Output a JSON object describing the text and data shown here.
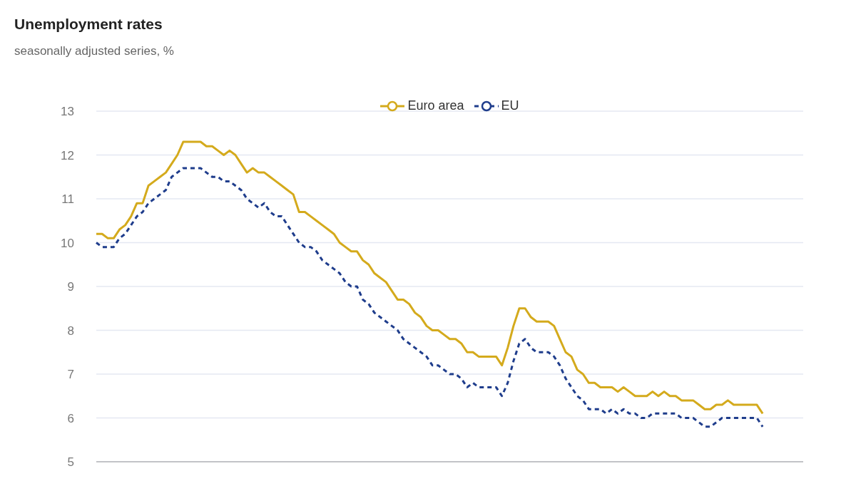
{
  "chart_data": {
    "type": "line",
    "title": "Unemployment rates",
    "subtitle": "seasonally adjusted series, %",
    "categories": [
      null,
      null,
      null,
      null,
      null,
      null,
      null,
      null,
      null,
      null,
      null,
      null,
      null,
      null,
      null,
      null,
      null,
      null,
      null,
      null,
      null,
      null,
      null,
      null,
      null,
      null,
      null,
      null,
      null,
      null,
      null,
      null,
      null,
      null,
      null,
      null,
      null,
      null,
      null,
      null,
      null,
      null,
      null,
      null,
      null,
      null,
      null,
      null,
      null,
      null,
      null,
      null,
      null,
      null,
      null,
      null,
      null,
      null,
      null,
      null,
      null,
      null,
      null,
      null,
      null,
      null,
      null,
      null,
      null,
      null,
      null,
      null,
      null,
      null,
      null,
      null,
      null,
      null,
      null,
      null,
      null,
      null,
      null,
      null,
      null,
      null,
      null,
      null,
      null,
      null,
      null,
      null,
      null,
      null,
      null,
      null,
      null,
      null,
      null,
      null,
      null,
      null,
      null,
      null,
      null,
      null,
      null,
      null,
      null,
      null,
      null,
      null,
      null,
      null,
      null,
      null,
      null,
      null,
      null,
      null,
      null,
      null,
      null
    ],
    "series": [
      {
        "name": "Euro area",
        "color": "#d4aa1c",
        "line_style": "solid",
        "values": [
          10.2,
          10.2,
          10.1,
          10.1,
          10.3,
          10.4,
          10.6,
          10.9,
          10.9,
          11.3,
          11.4,
          11.5,
          11.6,
          11.8,
          12.0,
          12.3,
          12.3,
          12.3,
          12.3,
          12.2,
          12.2,
          12.1,
          12.0,
          12.1,
          12.0,
          11.8,
          11.6,
          11.7,
          11.6,
          11.6,
          11.5,
          11.4,
          11.3,
          11.2,
          11.1,
          10.7,
          10.7,
          10.6,
          10.5,
          10.4,
          10.3,
          10.2,
          10.0,
          9.9,
          9.8,
          9.8,
          9.6,
          9.5,
          9.3,
          9.2,
          9.1,
          8.9,
          8.7,
          8.7,
          8.6,
          8.4,
          8.3,
          8.1,
          8.0,
          8.0,
          7.9,
          7.8,
          7.8,
          7.7,
          7.5,
          7.5,
          7.4,
          7.4,
          7.4,
          7.4,
          7.2,
          7.6,
          8.1,
          8.5,
          8.5,
          8.3,
          8.2,
          8.2,
          8.2,
          8.1,
          7.8,
          7.5,
          7.4,
          7.1,
          7.0,
          6.8,
          6.8,
          6.7,
          6.7,
          6.7,
          6.6,
          6.7,
          6.6,
          6.5,
          6.5,
          6.5,
          6.6,
          6.5,
          6.6,
          6.5,
          6.5,
          6.4,
          6.4,
          6.4,
          6.3,
          6.2,
          6.2,
          6.3,
          6.3,
          6.4,
          6.3,
          6.3,
          6.3,
          6.3,
          6.3,
          6.1,
          null,
          null,
          null,
          null,
          null,
          null,
          null
        ]
      },
      {
        "name": "EU",
        "color": "#1f3d8c",
        "line_style": "dashed",
        "values": [
          10.0,
          9.9,
          9.9,
          9.9,
          10.1,
          10.2,
          10.4,
          10.6,
          10.7,
          10.9,
          11.0,
          11.1,
          11.2,
          11.5,
          11.6,
          11.7,
          11.7,
          11.7,
          11.7,
          11.6,
          11.5,
          11.5,
          11.4,
          11.4,
          11.3,
          11.2,
          11.0,
          10.9,
          10.8,
          10.9,
          10.7,
          10.6,
          10.6,
          10.4,
          10.2,
          10.0,
          9.9,
          9.9,
          9.8,
          9.6,
          9.5,
          9.4,
          9.3,
          9.1,
          9.0,
          9.0,
          8.7,
          8.6,
          8.4,
          8.3,
          8.2,
          8.1,
          8.0,
          7.8,
          7.7,
          7.6,
          7.5,
          7.4,
          7.2,
          7.2,
          7.1,
          7.0,
          7.0,
          6.9,
          6.7,
          6.8,
          6.7,
          6.7,
          6.7,
          6.7,
          6.5,
          6.8,
          7.3,
          7.7,
          7.8,
          7.6,
          7.5,
          7.5,
          7.5,
          7.4,
          7.2,
          6.9,
          6.7,
          6.5,
          6.4,
          6.2,
          6.2,
          6.2,
          6.1,
          6.2,
          6.1,
          6.2,
          6.1,
          6.1,
          6.0,
          6.0,
          6.1,
          6.1,
          6.1,
          6.1,
          6.1,
          6.0,
          6.0,
          6.0,
          5.9,
          5.8,
          5.8,
          5.9,
          6.0,
          6.0,
          6.0,
          6.0,
          6.0,
          6.0,
          6.0,
          5.8,
          null,
          null,
          null,
          null,
          null,
          null,
          null
        ]
      }
    ],
    "ylim": [
      5,
      13
    ],
    "yticks": [
      5,
      6,
      7,
      8,
      9,
      10,
      11,
      12,
      13
    ],
    "grid": "y",
    "legend": "top",
    "tick_labels": "y"
  }
}
